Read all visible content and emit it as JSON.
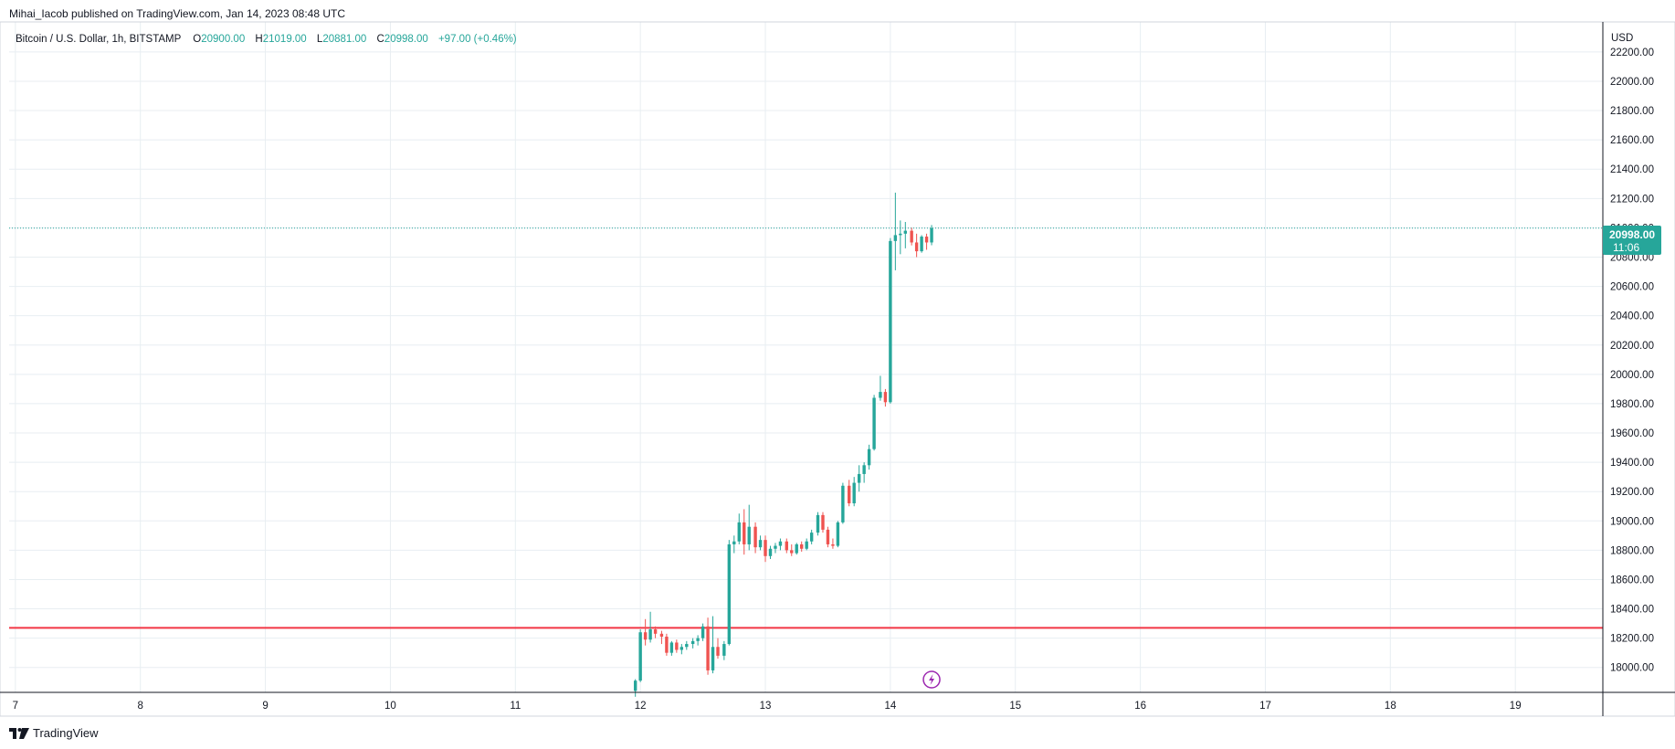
{
  "caption": "Mihai_Iacob published on TradingView.com, Jan 14, 2023 08:48 UTC",
  "legend": {
    "symbol": "Bitcoin / U.S. Dollar, 1h, BITSTAMP",
    "open_label": "O",
    "open": "20900.00",
    "high_label": "H",
    "high": "21019.00",
    "low_label": "L",
    "low": "20881.00",
    "close_label": "C",
    "close": "20998.00",
    "change": "+97.00 (+0.46%)"
  },
  "price_axis": {
    "currency": "USD",
    "last_price": "20998.00",
    "countdown": "11:06"
  },
  "footer": {
    "brand": "TradingView"
  },
  "colors": {
    "up": "#26a69a",
    "down": "#ef5350",
    "support": "#f23645",
    "grid": "#e8eef2",
    "text": "#131722",
    "accent_icon": "#9c27b0"
  },
  "chart_data": {
    "type": "candlestick",
    "title": "Bitcoin / U.S. Dollar, 1h, BITSTAMP",
    "x_ticks": [
      {
        "label": "7",
        "day": 7
      },
      {
        "label": "8",
        "day": 8
      },
      {
        "label": "9",
        "day": 9
      },
      {
        "label": "10",
        "day": 10
      },
      {
        "label": "11",
        "day": 11
      },
      {
        "label": "12",
        "day": 12
      },
      {
        "label": "13",
        "day": 13
      },
      {
        "label": "14",
        "day": 14
      },
      {
        "label": "15",
        "day": 15
      },
      {
        "label": "16",
        "day": 16
      },
      {
        "label": "17",
        "day": 17
      },
      {
        "label": "18",
        "day": 18
      },
      {
        "label": "19",
        "day": 19
      }
    ],
    "y_ticks": [
      18000,
      18200,
      18400,
      18600,
      18800,
      19000,
      19200,
      19400,
      19600,
      19800,
      20000,
      20200,
      20400,
      20600,
      20800,
      21000,
      21200,
      21400,
      21600,
      21800,
      22000,
      22200
    ],
    "y_range": [
      17830,
      22380
    ],
    "x_range": [
      6.95,
      19.7
    ],
    "support_level": 18270,
    "last_price_value": 20998,
    "event_marker_day": 14.33,
    "candles": [
      {
        "t": 11.96,
        "o": 17840,
        "h": 17920,
        "l": 17800,
        "c": 17910
      },
      {
        "t": 12.0,
        "o": 17910,
        "h": 18260,
        "l": 17900,
        "c": 18240
      },
      {
        "t": 12.04,
        "o": 18240,
        "h": 18330,
        "l": 18150,
        "c": 18190
      },
      {
        "t": 12.08,
        "o": 18190,
        "h": 18380,
        "l": 18170,
        "c": 18260
      },
      {
        "t": 12.12,
        "o": 18260,
        "h": 18280,
        "l": 18200,
        "c": 18230
      },
      {
        "t": 12.17,
        "o": 18230,
        "h": 18250,
        "l": 18160,
        "c": 18210
      },
      {
        "t": 12.21,
        "o": 18210,
        "h": 18230,
        "l": 18080,
        "c": 18100
      },
      {
        "t": 12.25,
        "o": 18100,
        "h": 18180,
        "l": 18080,
        "c": 18170
      },
      {
        "t": 12.29,
        "o": 18170,
        "h": 18190,
        "l": 18100,
        "c": 18120
      },
      {
        "t": 12.33,
        "o": 18120,
        "h": 18160,
        "l": 18090,
        "c": 18140
      },
      {
        "t": 12.37,
        "o": 18140,
        "h": 18180,
        "l": 18120,
        "c": 18160
      },
      {
        "t": 12.42,
        "o": 18160,
        "h": 18200,
        "l": 18130,
        "c": 18180
      },
      {
        "t": 12.46,
        "o": 18180,
        "h": 18220,
        "l": 18150,
        "c": 18200
      },
      {
        "t": 12.5,
        "o": 18200,
        "h": 18300,
        "l": 18180,
        "c": 18280
      },
      {
        "t": 12.54,
        "o": 18280,
        "h": 18340,
        "l": 17950,
        "c": 17980
      },
      {
        "t": 12.58,
        "o": 17980,
        "h": 18350,
        "l": 17960,
        "c": 18140
      },
      {
        "t": 12.62,
        "o": 18140,
        "h": 18200,
        "l": 18060,
        "c": 18080
      },
      {
        "t": 12.67,
        "o": 18080,
        "h": 18180,
        "l": 18050,
        "c": 18160
      },
      {
        "t": 12.71,
        "o": 18160,
        "h": 18870,
        "l": 18150,
        "c": 18840
      },
      {
        "t": 12.75,
        "o": 18840,
        "h": 18900,
        "l": 18780,
        "c": 18860
      },
      {
        "t": 12.79,
        "o": 18860,
        "h": 19050,
        "l": 18840,
        "c": 18990
      },
      {
        "t": 12.83,
        "o": 18990,
        "h": 19080,
        "l": 18770,
        "c": 18840
      },
      {
        "t": 12.87,
        "o": 18840,
        "h": 19110,
        "l": 18800,
        "c": 18960
      },
      {
        "t": 12.92,
        "o": 18960,
        "h": 18990,
        "l": 18780,
        "c": 18820
      },
      {
        "t": 12.96,
        "o": 18820,
        "h": 18900,
        "l": 18800,
        "c": 18870
      },
      {
        "t": 13.0,
        "o": 18870,
        "h": 18900,
        "l": 18720,
        "c": 18760
      },
      {
        "t": 13.04,
        "o": 18760,
        "h": 18830,
        "l": 18740,
        "c": 18810
      },
      {
        "t": 13.08,
        "o": 18810,
        "h": 18850,
        "l": 18780,
        "c": 18830
      },
      {
        "t": 13.12,
        "o": 18830,
        "h": 18880,
        "l": 18800,
        "c": 18860
      },
      {
        "t": 13.17,
        "o": 18860,
        "h": 18880,
        "l": 18780,
        "c": 18800
      },
      {
        "t": 13.21,
        "o": 18800,
        "h": 18840,
        "l": 18760,
        "c": 18780
      },
      {
        "t": 13.25,
        "o": 18780,
        "h": 18850,
        "l": 18770,
        "c": 18840
      },
      {
        "t": 13.29,
        "o": 18840,
        "h": 18860,
        "l": 18790,
        "c": 18810
      },
      {
        "t": 13.33,
        "o": 18810,
        "h": 18880,
        "l": 18800,
        "c": 18860
      },
      {
        "t": 13.37,
        "o": 18860,
        "h": 18940,
        "l": 18840,
        "c": 18920
      },
      {
        "t": 13.42,
        "o": 18920,
        "h": 19060,
        "l": 18900,
        "c": 19040
      },
      {
        "t": 13.46,
        "o": 19040,
        "h": 19060,
        "l": 18920,
        "c": 18940
      },
      {
        "t": 13.5,
        "o": 18940,
        "h": 18960,
        "l": 18820,
        "c": 18840
      },
      {
        "t": 13.54,
        "o": 18840,
        "h": 18880,
        "l": 18810,
        "c": 18830
      },
      {
        "t": 13.58,
        "o": 18830,
        "h": 19000,
        "l": 18820,
        "c": 18990
      },
      {
        "t": 13.62,
        "o": 18990,
        "h": 19260,
        "l": 18980,
        "c": 19240
      },
      {
        "t": 13.67,
        "o": 19240,
        "h": 19280,
        "l": 19100,
        "c": 19120
      },
      {
        "t": 13.71,
        "o": 19120,
        "h": 19300,
        "l": 19100,
        "c": 19260
      },
      {
        "t": 13.75,
        "o": 19260,
        "h": 19380,
        "l": 19200,
        "c": 19320
      },
      {
        "t": 13.79,
        "o": 19320,
        "h": 19400,
        "l": 19260,
        "c": 19380
      },
      {
        "t": 13.83,
        "o": 19380,
        "h": 19520,
        "l": 19350,
        "c": 19490
      },
      {
        "t": 13.87,
        "o": 19490,
        "h": 19860,
        "l": 19480,
        "c": 19840
      },
      {
        "t": 13.92,
        "o": 19840,
        "h": 19990,
        "l": 19820,
        "c": 19880
      },
      {
        "t": 13.96,
        "o": 19880,
        "h": 19900,
        "l": 19780,
        "c": 19810
      },
      {
        "t": 14.0,
        "o": 19810,
        "h": 20930,
        "l": 19800,
        "c": 20910
      },
      {
        "t": 14.04,
        "o": 20910,
        "h": 21240,
        "l": 20710,
        "c": 20950
      },
      {
        "t": 14.08,
        "o": 20950,
        "h": 21050,
        "l": 20820,
        "c": 20960
      },
      {
        "t": 14.12,
        "o": 20960,
        "h": 21040,
        "l": 20860,
        "c": 20980
      },
      {
        "t": 14.17,
        "o": 20980,
        "h": 21000,
        "l": 20880,
        "c": 20900
      },
      {
        "t": 14.21,
        "o": 20900,
        "h": 20960,
        "l": 20800,
        "c": 20840
      },
      {
        "t": 14.25,
        "o": 20840,
        "h": 20950,
        "l": 20830,
        "c": 20940
      },
      {
        "t": 14.29,
        "o": 20940,
        "h": 20960,
        "l": 20850,
        "c": 20900
      },
      {
        "t": 14.33,
        "o": 20900,
        "h": 21019,
        "l": 20881,
        "c": 20998
      }
    ]
  }
}
